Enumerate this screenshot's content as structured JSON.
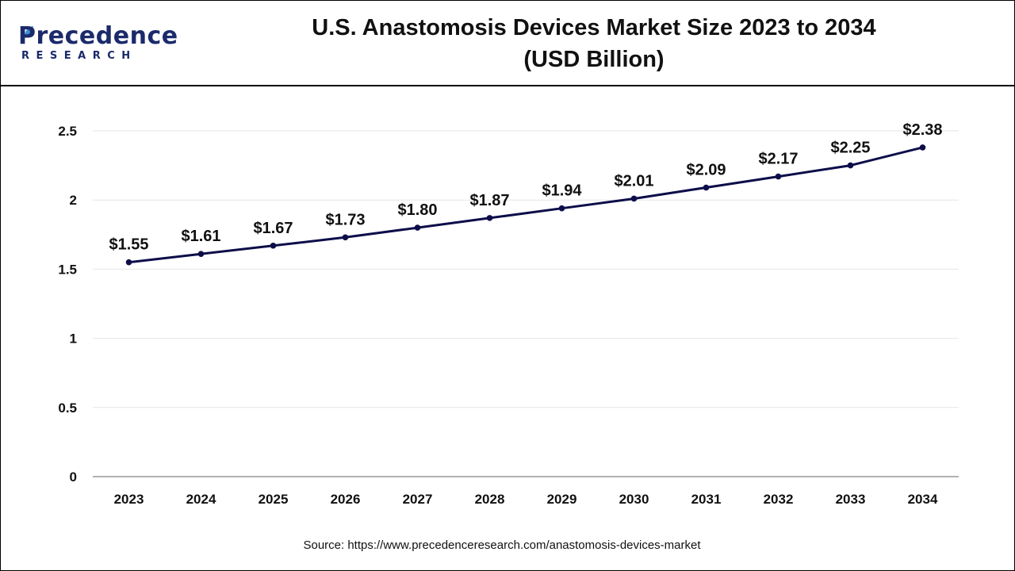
{
  "brand": {
    "name": "Precedence",
    "sub": "RESEARCH"
  },
  "title": {
    "line1": "U.S. Anastomosis Devices Market Size 2023 to 2034",
    "line2": "(USD Billion)"
  },
  "source": "Source: https://www.precedenceresearch.com/anastomosis-devices-market",
  "colors": {
    "line": "#0d0d4a",
    "grid": "#e6e6e6",
    "axis": "#999999",
    "brand": "#1b2a6b",
    "text": "#111111"
  },
  "chart_data": {
    "type": "line",
    "categories": [
      "2023",
      "2024",
      "2025",
      "2026",
      "2027",
      "2028",
      "2029",
      "2030",
      "2031",
      "2032",
      "2033",
      "2034"
    ],
    "values": [
      1.55,
      1.61,
      1.67,
      1.73,
      1.8,
      1.87,
      1.94,
      2.01,
      2.09,
      2.17,
      2.25,
      2.38
    ],
    "data_labels": [
      "$1.55",
      "$1.61",
      "$1.67",
      "$1.73",
      "$1.80",
      "$1.87",
      "$1.94",
      "$2.01",
      "$2.09",
      "$2.17",
      "$2.25",
      "$2.38"
    ],
    "y_ticks": [
      "0",
      "0.5",
      "1",
      "1.5",
      "2",
      "2.5"
    ],
    "ylim": [
      0,
      2.5
    ],
    "grid": true,
    "legend": "none"
  }
}
